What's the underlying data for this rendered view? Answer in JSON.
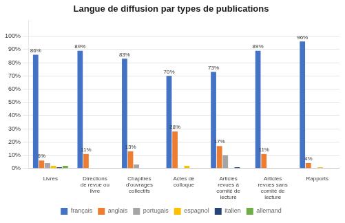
{
  "chart_data": {
    "type": "bar",
    "title": "Langue de diffusion par types de publications",
    "categories": [
      "Livres",
      "Directions\nde revue ou\nlivre",
      "Chapitres\nd'ouvrages\ncollectifs",
      "Actes de\ncolloque",
      "Articles\nrevues à\ncomité de\nlecture",
      "Articles\nrevues sans\ncomité de\nlecture",
      "Rapports"
    ],
    "series": [
      {
        "name": "français",
        "color": "#4472c4",
        "values": [
          86,
          89,
          83,
          70,
          73,
          89,
          96
        ],
        "value_labels": [
          "86%",
          "89%",
          "83%",
          "70%",
          "73%",
          "89%",
          "96%"
        ]
      },
      {
        "name": "anglais",
        "color": "#ed7d31",
        "values": [
          6,
          11,
          13,
          28,
          17,
          11,
          4
        ],
        "value_labels": [
          "6%",
          "11%",
          "13%",
          "28%",
          "17%",
          "11%",
          "4%"
        ]
      },
      {
        "name": "portugais",
        "color": "#a5a5a5",
        "values": [
          4,
          0,
          3,
          0,
          10,
          0,
          0
        ]
      },
      {
        "name": "espagnol",
        "color": "#ffc000",
        "values": [
          2,
          0,
          0,
          2,
          0,
          0,
          1
        ]
      },
      {
        "name": "italien",
        "color": "#264478",
        "values": [
          1,
          0,
          0,
          0,
          1,
          0,
          0
        ]
      },
      {
        "name": "allemand",
        "color": "#70ad47",
        "values": [
          2,
          0,
          0,
          0,
          0,
          0,
          0
        ]
      }
    ],
    "ylim": [
      0,
      112
    ],
    "yticks": [
      {
        "value": 0,
        "label": "0%"
      },
      {
        "value": 10,
        "label": "10%"
      },
      {
        "value": 20,
        "label": "20%"
      },
      {
        "value": 30,
        "label": "30%"
      },
      {
        "value": 40,
        "label": "40%"
      },
      {
        "value": 50,
        "label": "50%"
      },
      {
        "value": 60,
        "label": "60%"
      },
      {
        "value": 70,
        "label": "70%"
      },
      {
        "value": 80,
        "label": "80%"
      },
      {
        "value": 90,
        "label": "90%"
      },
      {
        "value": 100,
        "label": "100%"
      }
    ],
    "grid": true,
    "legend": "bottom",
    "data_labels": true
  }
}
